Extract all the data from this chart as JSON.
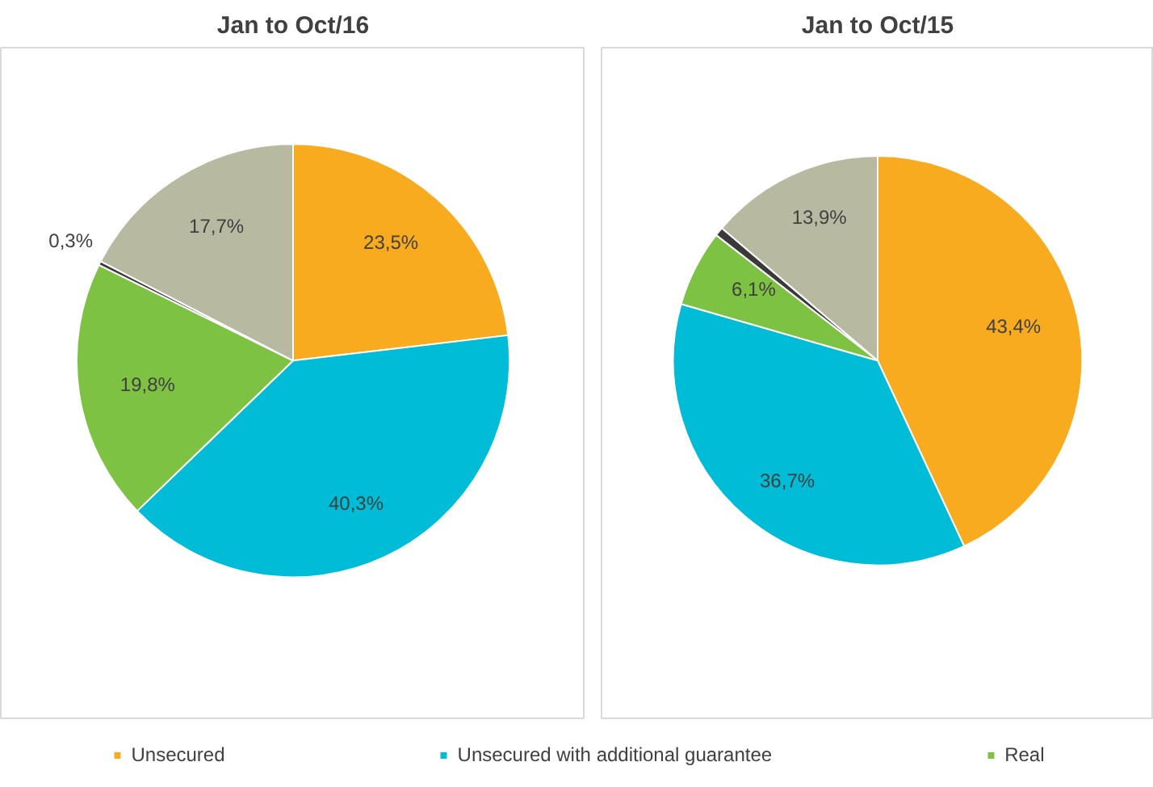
{
  "chart_data": [
    {
      "type": "pie",
      "title": "Jan to Oct/16",
      "categories": [
        "Unsecured",
        "Unsecured with additional guarantee",
        "Real",
        null,
        null
      ],
      "values": [
        23.5,
        40.3,
        19.8,
        0.3,
        17.7
      ],
      "colors": [
        "#f9ab1f",
        "#00bcd7",
        "#7dc242",
        "#3a3a3a",
        "#b8b9a1"
      ],
      "value_labels": [
        "23,5%",
        "40,3%",
        "19,8%",
        "0,3%",
        "17,7%"
      ],
      "legend": "bottom"
    },
    {
      "type": "pie",
      "title": "Jan to Oct/15",
      "categories": [
        null,
        null,
        null,
        null,
        null
      ],
      "values": [
        43.4,
        36.7,
        6.1,
        0.7,
        13.9
      ],
      "colors": [
        "#f9ab1f",
        "#00bcd7",
        "#7dc242",
        "#3a3a3a",
        "#b8b9a1"
      ],
      "value_labels": [
        "43,4%",
        "36,7%",
        "6,1%",
        null,
        "13,9%"
      ]
    }
  ]
}
